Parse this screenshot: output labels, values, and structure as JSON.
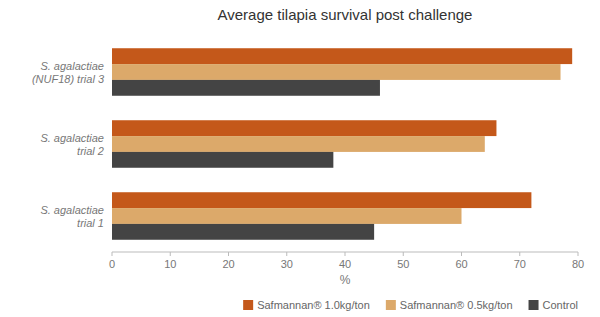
{
  "chart_data": {
    "type": "bar",
    "orientation": "horizontal",
    "title": "Average tilapia survival post challenge",
    "categories": [
      "S. agalactiae\ntrial 1",
      "S. agalactiae\ntrial 2",
      "S. agalactiae\n(NUF18) trial 3"
    ],
    "series": [
      {
        "name": "Safmannan® 1.0kg/ton",
        "color": "#C4581A",
        "values": [
          72,
          66,
          79
        ]
      },
      {
        "name": "Safmannan® 0.5kg/ton",
        "color": "#DCA96A",
        "values": [
          60,
          64,
          77
        ]
      },
      {
        "name": "Control",
        "color": "#444444",
        "values": [
          45,
          38,
          46
        ]
      }
    ],
    "xlabel": "%",
    "xlim": [
      0,
      80
    ],
    "xticks": [
      0,
      10,
      20,
      30,
      40,
      50,
      60,
      70,
      80
    ],
    "grid": false,
    "legend": "lower right"
  }
}
